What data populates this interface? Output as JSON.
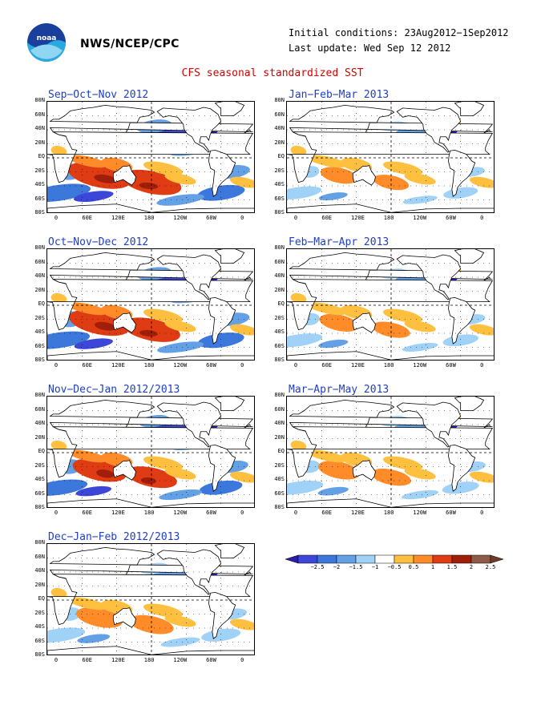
{
  "header": {
    "org": "NWS/NCEP/CPC",
    "initial_conditions": "Initial conditions: 23Aug2012−1Sep2012",
    "last_update": "Last update: Wed Sep 12 2012",
    "title": "CFS seasonal standardized SST"
  },
  "logo": {
    "text": "noaa",
    "icon": "noaa-logo"
  },
  "axes": {
    "lat_labels": [
      "80N",
      "60N",
      "40N",
      "20N",
      "EQ",
      "20S",
      "40S",
      "60S",
      "80S"
    ],
    "lon_labels": [
      "0",
      "60E",
      "120E",
      "180",
      "120W",
      "60W",
      "0"
    ]
  },
  "panels": [
    {
      "id": "p1",
      "title": "Sep−Oct−Nov 2012",
      "intensity": 1.0
    },
    {
      "id": "p2",
      "title": "Jan−Feb−Mar 2013",
      "intensity": 0.45
    },
    {
      "id": "p3",
      "title": "Oct−Nov−Dec 2012",
      "intensity": 0.95
    },
    {
      "id": "p4",
      "title": "Feb−Mar−Apr 2013",
      "intensity": 0.5
    },
    {
      "id": "p5",
      "title": "Nov−Dec−Jan 2012/2013",
      "intensity": 0.8
    },
    {
      "id": "p6",
      "title": "Mar−Apr−May 2013",
      "intensity": 0.55
    },
    {
      "id": "p7",
      "title": "Dec−Jan−Feb 2012/2013",
      "intensity": 0.65
    }
  ],
  "colorbar": {
    "ticks": [
      "−2.5",
      "−2",
      "−1.5",
      "−1",
      "−0.5",
      "0.5",
      "1",
      "1.5",
      "2",
      "2.5"
    ],
    "colors": [
      "#2a1ea8",
      "#3c46d8",
      "#3c78dc",
      "#64a0e6",
      "#a0d2f8",
      "#ffffff",
      "#ffc040",
      "#ff8c28",
      "#e03c14",
      "#a01e0a",
      "#8c5a46",
      "#6e3c28"
    ]
  }
}
